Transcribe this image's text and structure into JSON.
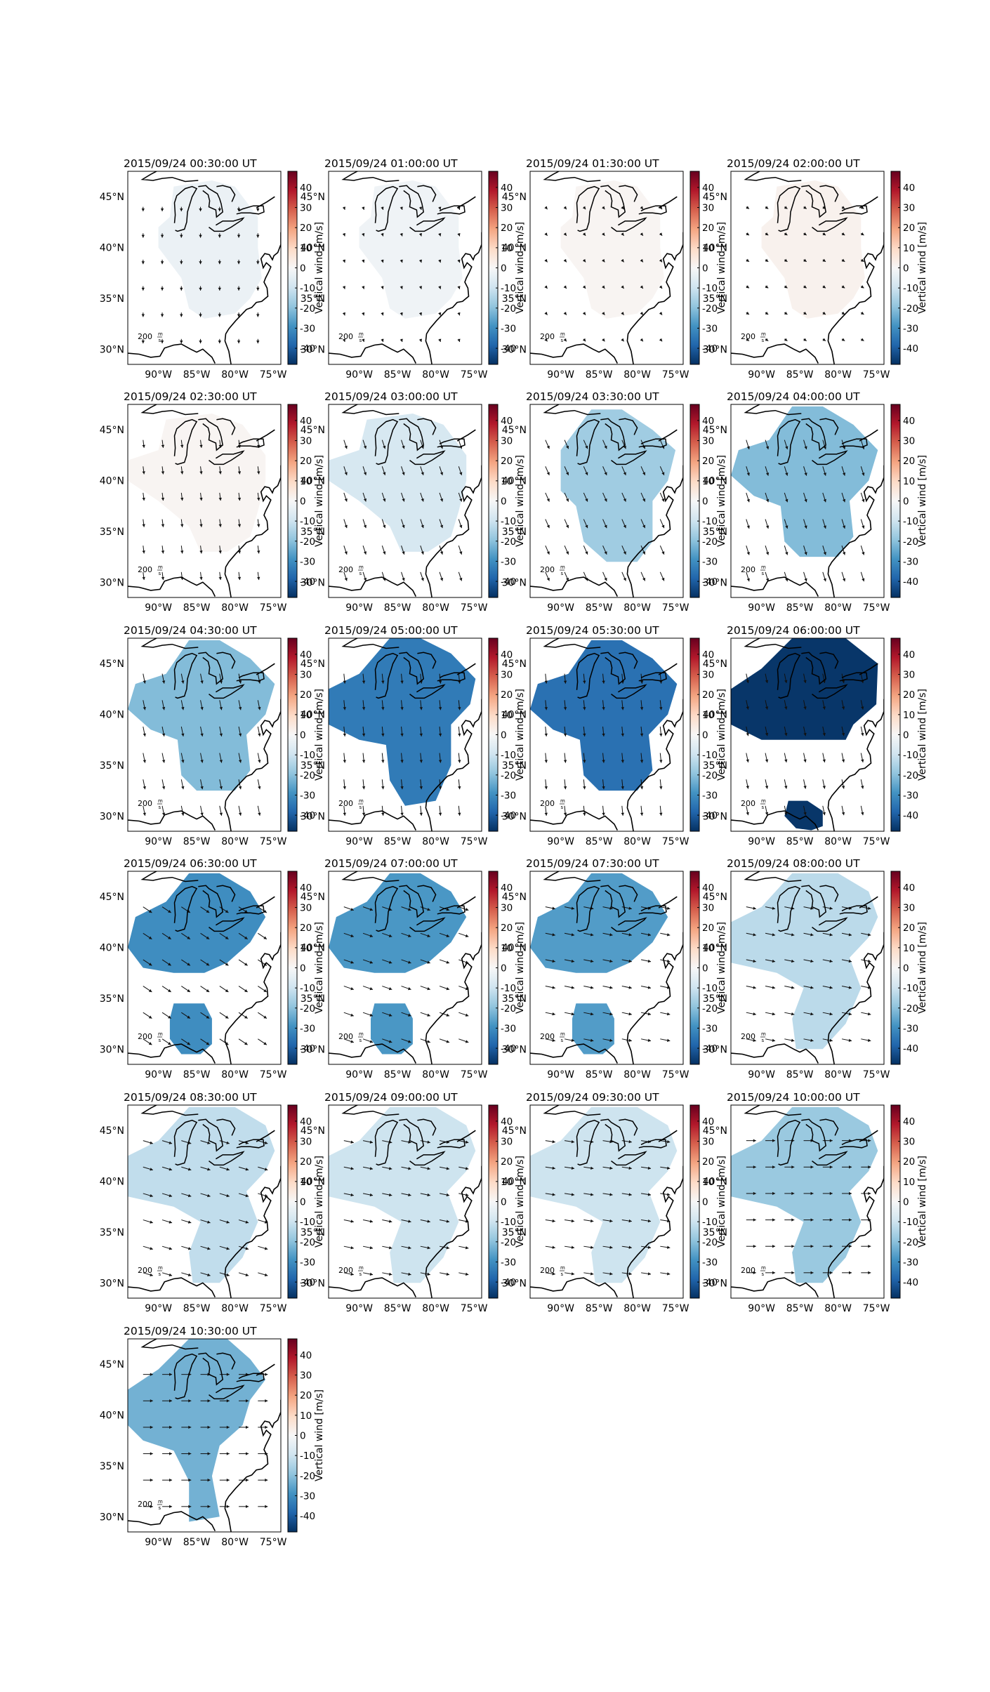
{
  "figure": {
    "colorbar": {
      "label": "Vertical wind [m/s]",
      "ticks": [
        40,
        30,
        20,
        10,
        0,
        -10,
        -20,
        -30,
        -40
      ],
      "range": [
        -48,
        48
      ],
      "colors": [
        "#053061",
        "#2166ac",
        "#4393c3",
        "#92c5de",
        "#d1e5f0",
        "#f7f7f7",
        "#fddbc7",
        "#f4a582",
        "#d6604d",
        "#b2182b",
        "#67001f"
      ]
    },
    "axes": {
      "lon_labels": [
        "90°W",
        "85°W",
        "80°W",
        "75°W"
      ],
      "lat_labels": [
        "45°N",
        "40°N",
        "35°N",
        "30°N"
      ],
      "lon_values": [
        -90,
        -85,
        -80,
        -75
      ],
      "lat_values": [
        45,
        40,
        35,
        30
      ],
      "lon_range": [
        -94,
        -74
      ],
      "lat_range": [
        28.5,
        47.5
      ]
    },
    "reference_arrow": {
      "value": "200",
      "unit_num": "m",
      "unit_den": "s"
    },
    "land_color": "#ffffff",
    "coast_color": "#000000",
    "panels": [
      {
        "title": "2015/09/24 00:30:00 UT",
        "wind": -3,
        "region": "A",
        "arrow": [
          0,
          0.45
        ]
      },
      {
        "title": "2015/09/24 01:00:00 UT",
        "wind": -2,
        "region": "A",
        "arrow": [
          0.1,
          0.3
        ]
      },
      {
        "title": "2015/09/24 01:30:00 UT",
        "wind": 1,
        "region": "A",
        "arrow": [
          0.2,
          0.25
        ]
      },
      {
        "title": "2015/09/24 02:00:00 UT",
        "wind": 2,
        "region": "A",
        "arrow": [
          0.3,
          0.2
        ]
      },
      {
        "title": "2015/09/24 02:30:00 UT",
        "wind": 1,
        "region": "B",
        "arrow": [
          0.1,
          0.8
        ]
      },
      {
        "title": "2015/09/24 03:00:00 UT",
        "wind": -8,
        "region": "B",
        "arrow": [
          0.3,
          0.9
        ]
      },
      {
        "title": "2015/09/24 03:30:00 UT",
        "wind": -17,
        "region": "C",
        "arrow": [
          0.4,
          0.9
        ]
      },
      {
        "title": "2015/09/24 04:00:00 UT",
        "wind": -21,
        "region": "D",
        "arrow": [
          0.3,
          0.95
        ]
      },
      {
        "title": "2015/09/24 04:30:00 UT",
        "wind": -21,
        "region": "D",
        "arrow": [
          0.2,
          1.0
        ]
      },
      {
        "title": "2015/09/24 05:00:00 UT",
        "wind": -34,
        "region": "E",
        "arrow": [
          0.1,
          1.0
        ]
      },
      {
        "title": "2015/09/24 05:30:00 UT",
        "wind": -36,
        "region": "D",
        "arrow": [
          0.1,
          1.0
        ]
      },
      {
        "title": "2015/09/24 06:00:00 UT",
        "wind": -47,
        "region": "F",
        "arrow": [
          0.2,
          0.95
        ]
      },
      {
        "title": "2015/09/24 06:30:00 UT",
        "wind": -30,
        "region": "G",
        "arrow": [
          0.9,
          0.6
        ]
      },
      {
        "title": "2015/09/24 07:00:00 UT",
        "wind": -28,
        "region": "G",
        "arrow": [
          1.0,
          0.35
        ]
      },
      {
        "title": "2015/09/24 07:30:00 UT",
        "wind": -27,
        "region": "G",
        "arrow": [
          1.0,
          0.2
        ]
      },
      {
        "title": "2015/09/24 08:00:00 UT",
        "wind": -13,
        "region": "H",
        "arrow": [
          1.0,
          0.2
        ]
      },
      {
        "title": "2015/09/24 08:30:00 UT",
        "wind": -12,
        "region": "H",
        "arrow": [
          1.0,
          0.3
        ]
      },
      {
        "title": "2015/09/24 09:00:00 UT",
        "wind": -10,
        "region": "H",
        "arrow": [
          1.0,
          0.2
        ]
      },
      {
        "title": "2015/09/24 09:30:00 UT",
        "wind": -10,
        "region": "H",
        "arrow": [
          1.0,
          0.15
        ]
      },
      {
        "title": "2015/09/24 10:00:00 UT",
        "wind": -18,
        "region": "H",
        "arrow": [
          1.0,
          0.0
        ]
      },
      {
        "title": "2015/09/24 10:30:00 UT",
        "wind": -23,
        "region": "I",
        "arrow": [
          1.0,
          0.0
        ]
      }
    ]
  }
}
